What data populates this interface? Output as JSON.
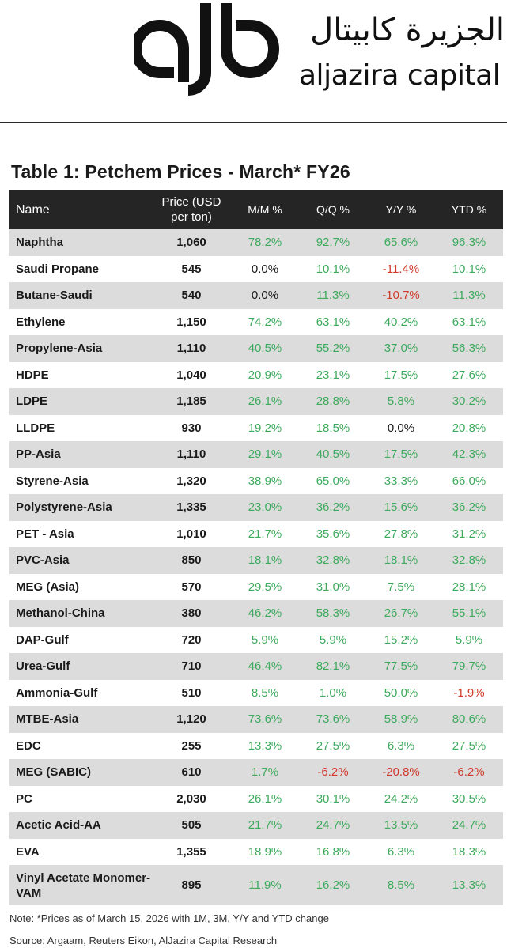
{
  "header": {
    "brand_arabic": "الجزيرة كابيتال",
    "brand_english": "aljazira capital",
    "logo_text": "ajb"
  },
  "table": {
    "title": "Table 1: Petchem Prices - March* FY26",
    "columns": {
      "name": "Name",
      "price_line1": "Price (USD",
      "price_line2": "per ton)",
      "mm": "M/M %",
      "qq": "Q/Q %",
      "yy": "Y/Y %",
      "ytd": "YTD %"
    },
    "rows": [
      [
        "Naphtha",
        "1,060",
        "78.2%",
        "92.7%",
        "65.6%",
        "96.3%"
      ],
      [
        "Saudi Propane",
        "545",
        "0.0%",
        "10.1%",
        "-11.4%",
        "10.1%"
      ],
      [
        "Butane-Saudi",
        "540",
        "0.0%",
        "11.3%",
        "-10.7%",
        "11.3%"
      ],
      [
        "Ethylene",
        "1,150",
        "74.2%",
        "63.1%",
        "40.2%",
        "63.1%"
      ],
      [
        "Propylene-Asia",
        "1,110",
        "40.5%",
        "55.2%",
        "37.0%",
        "56.3%"
      ],
      [
        "HDPE",
        "1,040",
        "20.9%",
        "23.1%",
        "17.5%",
        "27.6%"
      ],
      [
        "LDPE",
        "1,185",
        "26.1%",
        "28.8%",
        "5.8%",
        "30.2%"
      ],
      [
        "LLDPE",
        "930",
        "19.2%",
        "18.5%",
        "0.0%",
        "20.8%"
      ],
      [
        "PP-Asia",
        "1,110",
        "29.1%",
        "40.5%",
        "17.5%",
        "42.3%"
      ],
      [
        "Styrene-Asia",
        "1,320",
        "38.9%",
        "65.0%",
        "33.3%",
        "66.0%"
      ],
      [
        "Polystyrene-Asia",
        "1,335",
        "23.0%",
        "36.2%",
        "15.6%",
        "36.2%"
      ],
      [
        "PET - Asia",
        "1,010",
        "21.7%",
        "35.6%",
        "27.8%",
        "31.2%"
      ],
      [
        "PVC-Asia",
        "850",
        "18.1%",
        "32.8%",
        "18.1%",
        "32.8%"
      ],
      [
        "MEG (Asia)",
        "570",
        "29.5%",
        "31.0%",
        "7.5%",
        "28.1%"
      ],
      [
        "Methanol-China",
        "380",
        "46.2%",
        "58.3%",
        "26.7%",
        "55.1%"
      ],
      [
        "DAP-Gulf",
        "720",
        "5.9%",
        "5.9%",
        "15.2%",
        "5.9%"
      ],
      [
        "Urea-Gulf",
        "710",
        "46.4%",
        "82.1%",
        "77.5%",
        "79.7%"
      ],
      [
        "Ammonia-Gulf",
        "510",
        "8.5%",
        "1.0%",
        "50.0%",
        "-1.9%"
      ],
      [
        "MTBE-Asia",
        "1,120",
        "73.6%",
        "73.6%",
        "58.9%",
        "80.6%"
      ],
      [
        "EDC",
        "255",
        "13.3%",
        "27.5%",
        "6.3%",
        "27.5%"
      ],
      [
        "MEG (SABIC)",
        "610",
        "1.7%",
        "-6.2%",
        "-20.8%",
        "-6.2%"
      ],
      [
        "PC",
        "2,030",
        "26.1%",
        "30.1%",
        "24.2%",
        "30.5%"
      ],
      [
        "Acetic Acid-AA",
        "505",
        "21.7%",
        "24.7%",
        "13.5%",
        "24.7%"
      ],
      [
        "EVA",
        "1,355",
        "18.9%",
        "16.8%",
        "6.3%",
        "18.3%"
      ],
      [
        "Vinyl Acetate Monomer-VAM",
        "895",
        "11.9%",
        "16.2%",
        "8.5%",
        "13.3%"
      ]
    ]
  },
  "footer": {
    "note": "Note: *Prices as of March 15, 2026 with 1M, 3M, Y/Y and YTD change",
    "source": "Source: Argaam, Reuters Eikon, AlJazira Capital Research"
  },
  "colors": {
    "positive": "#3daa5c",
    "negative": "#d0392b",
    "header_bg": "#252525",
    "stripe": "#dcdcdc"
  }
}
